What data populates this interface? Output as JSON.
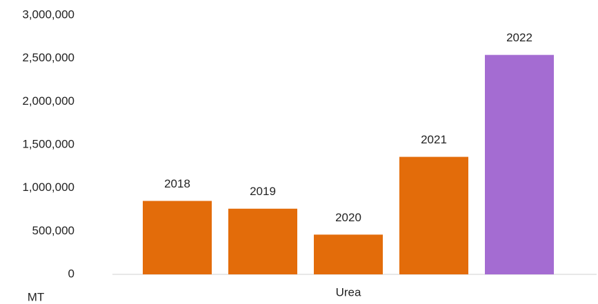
{
  "chart_data": {
    "type": "bar",
    "categories": [
      "Urea"
    ],
    "series": [
      {
        "name": "2018",
        "color": "#e36c0a",
        "values": [
          850000
        ]
      },
      {
        "name": "2019",
        "color": "#e36c0a",
        "values": [
          760000
        ]
      },
      {
        "name": "2020",
        "color": "#e36c0a",
        "values": [
          460000
        ]
      },
      {
        "name": "2021",
        "color": "#e36c0a",
        "values": [
          1360000
        ]
      },
      {
        "name": "2022",
        "color": "#a46cd2",
        "values": [
          2540000
        ]
      }
    ],
    "y_axis_label": "MT",
    "ylim": [
      0,
      3000000
    ],
    "yticks": [
      0,
      {
        "value": 500000,
        "label": "500,000"
      },
      {
        "value": 1000000,
        "label": "1,000,000"
      },
      {
        "value": 1500000,
        "label": "1,500,000"
      },
      {
        "value": 2000000,
        "label": "2,000,000"
      },
      {
        "value": 2500000,
        "label": "2,500,000"
      },
      {
        "value": 3000000,
        "label": "3,000,000"
      }
    ],
    "grid": false
  }
}
